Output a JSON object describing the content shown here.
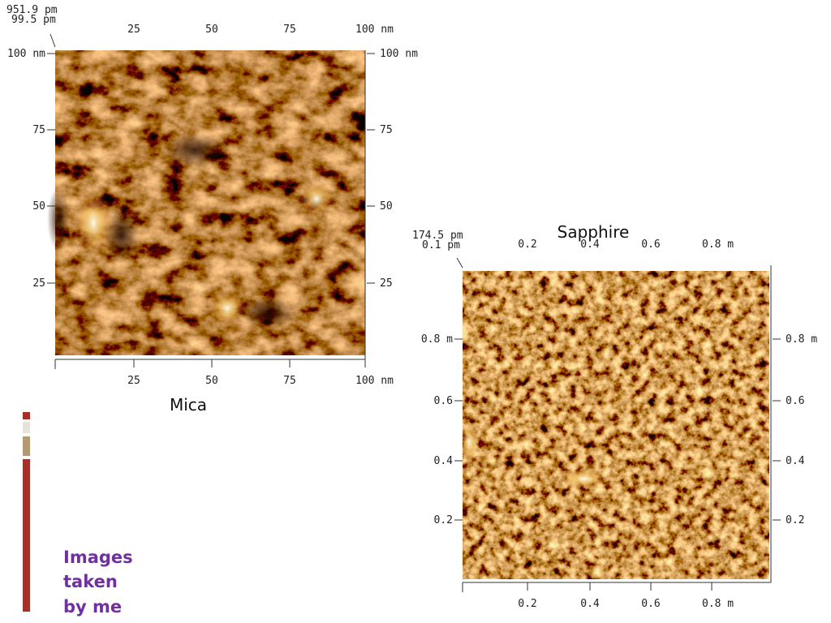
{
  "images": [
    {
      "caption": "Mica",
      "z_max": "951.9 pm",
      "z_min": "99.5 pm",
      "x_ticks": [
        "25",
        "50",
        "75",
        "100 nm"
      ],
      "y_ticks": [
        "25",
        "50",
        "75",
        "100 nm"
      ]
    },
    {
      "caption": "Sapphire",
      "z_max": "174.5 pm",
      "z_min": "0.1 pm",
      "x_ticks": [
        "0.2",
        "0.4",
        "0.6",
        "0.8 m"
      ],
      "y_ticks": [
        "0.2",
        "0.4",
        "0.6",
        "0.8 m"
      ]
    }
  ],
  "note": [
    "Images",
    "taken",
    "by me"
  ]
}
